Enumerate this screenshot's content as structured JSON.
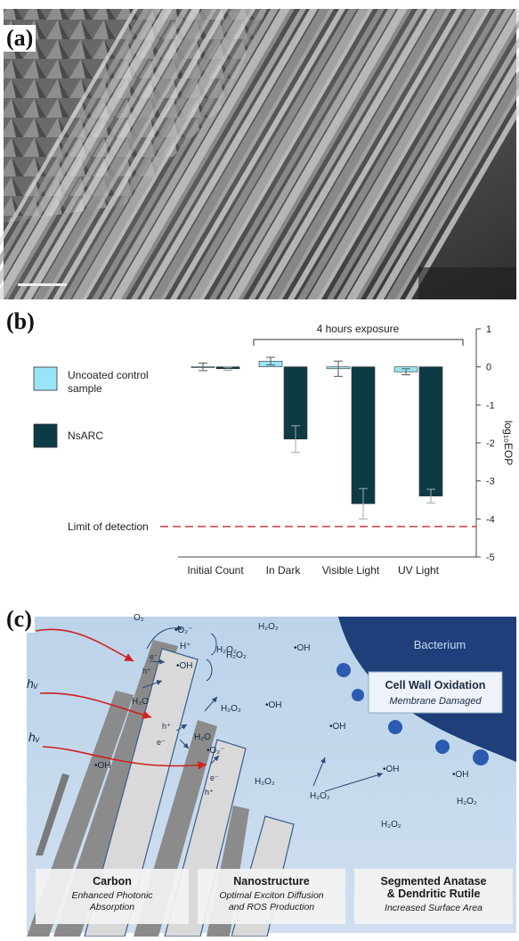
{
  "panel_labels": {
    "a": "(a)",
    "b": "(b)",
    "c": "(c)"
  },
  "chart_data": {
    "type": "bar",
    "categories": [
      "Initial Count",
      "In Dark",
      "Visible Light",
      "UV Light"
    ],
    "series": [
      {
        "name": "Uncoated control sample",
        "values": [
          0.0,
          0.15,
          -0.05,
          -0.13
        ],
        "errors": [
          0.1,
          0.1,
          0.2,
          0.08
        ]
      },
      {
        "name": "NsARC",
        "values": [
          -0.05,
          -1.9,
          -3.6,
          -3.4
        ],
        "errors": [
          0.04,
          0.35,
          0.4,
          0.18
        ]
      }
    ],
    "ylabel": "log₁₀EOP",
    "ylim": [
      -5,
      1
    ],
    "yticks": [
      "1",
      "0",
      "-1",
      "-2",
      "-3",
      "-4",
      "-5"
    ],
    "legend_lines": [
      [
        "Uncoated control",
        "sample"
      ],
      [
        "NsARC"
      ]
    ],
    "annotations": {
      "bracket": "4 hours exposure",
      "limit": "Limit of detection",
      "limit_value": -4.2
    },
    "colors": {
      "control": "#99e4f6",
      "nsarc": "#0d3b45",
      "limit": "#c24040"
    }
  },
  "schematic": {
    "bacterium": "Bacterium",
    "cell_wall_title": "Cell Wall Oxidation",
    "cell_wall_sub": "Membrane Damaged",
    "hv": "hᵥ",
    "o2": "O₂",
    "o2_minus": "•O₂⁻",
    "h_plus": "H⁺",
    "h2o2": "H₂O₂",
    "oh": "•OH",
    "h2o": "H₂O",
    "e_minus": "e⁻",
    "h_hole": "h⁺",
    "captions": [
      {
        "title": "Carbon",
        "lines": [
          "Enhanced Photonic",
          "Absorption"
        ]
      },
      {
        "title": "Nanostructure",
        "lines": [
          "Optimal Exciton Diffusion",
          "and ROS Production"
        ]
      },
      {
        "title_lines": [
          "Segmented Anatase",
          "& Dendritic Rutile"
        ],
        "lines": [
          "Increased Surface Area"
        ]
      }
    ]
  }
}
